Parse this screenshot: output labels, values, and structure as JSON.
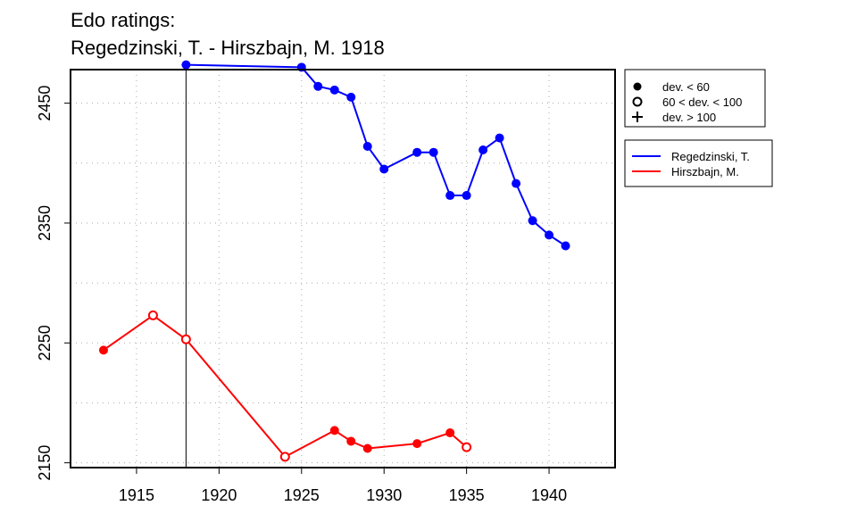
{
  "chart_data": {
    "type": "line",
    "title_line1": "Edo ratings:",
    "title_line2": "Regedzinski, T. - Hirszbajn, M. 1918",
    "xlabel": "",
    "ylabel": "",
    "xlim": [
      1911,
      1944
    ],
    "ylim": [
      2146,
      2478
    ],
    "x_ticks": [
      1915,
      1920,
      1925,
      1930,
      1935,
      1940
    ],
    "y_ticks": [
      2150,
      2250,
      2350,
      2450
    ],
    "x_grid": [
      1915,
      1920,
      1925,
      1930,
      1935,
      1940
    ],
    "y_grid": [
      2150,
      2200,
      2250,
      2300,
      2350,
      2400,
      2450,
      2500
    ],
    "grid": "dotted",
    "marker_year": 1918,
    "marker_legend": [
      {
        "symbol": "filled-circle",
        "label": "dev. < 60"
      },
      {
        "symbol": "open-circle",
        "label": "60 < dev. < 100"
      },
      {
        "symbol": "plus",
        "label": "dev. > 100"
      }
    ],
    "series": [
      {
        "name": "Regedzinski, T.",
        "color": "#0000ff",
        "points": [
          {
            "x": 1918,
            "y": 2482,
            "dev": "low"
          },
          {
            "x": 1925,
            "y": 2480,
            "dev": "low"
          },
          {
            "x": 1926,
            "y": 2464,
            "dev": "low"
          },
          {
            "x": 1927,
            "y": 2461,
            "dev": "low"
          },
          {
            "x": 1928,
            "y": 2455,
            "dev": "low"
          },
          {
            "x": 1929,
            "y": 2414,
            "dev": "low"
          },
          {
            "x": 1930,
            "y": 2395,
            "dev": "low"
          },
          {
            "x": 1932,
            "y": 2409,
            "dev": "low"
          },
          {
            "x": 1933,
            "y": 2409,
            "dev": "low"
          },
          {
            "x": 1934,
            "y": 2373,
            "dev": "low"
          },
          {
            "x": 1935,
            "y": 2373,
            "dev": "low"
          },
          {
            "x": 1936,
            "y": 2411,
            "dev": "low"
          },
          {
            "x": 1937,
            "y": 2421,
            "dev": "low"
          },
          {
            "x": 1938,
            "y": 2383,
            "dev": "low"
          },
          {
            "x": 1939,
            "y": 2352,
            "dev": "low"
          },
          {
            "x": 1940,
            "y": 2340,
            "dev": "low"
          },
          {
            "x": 1941,
            "y": 2331,
            "dev": "low"
          }
        ]
      },
      {
        "name": "Hirszbajn, M.",
        "color": "#ff0000",
        "points": [
          {
            "x": 1913,
            "y": 2244,
            "dev": "low"
          },
          {
            "x": 1916,
            "y": 2273,
            "dev": "mid"
          },
          {
            "x": 1918,
            "y": 2253,
            "dev": "mid"
          },
          {
            "x": 1924,
            "y": 2155,
            "dev": "mid"
          },
          {
            "x": 1927,
            "y": 2177,
            "dev": "low"
          },
          {
            "x": 1928,
            "y": 2168,
            "dev": "low"
          },
          {
            "x": 1929,
            "y": 2162,
            "dev": "low"
          },
          {
            "x": 1932,
            "y": 2166,
            "dev": "low"
          },
          {
            "x": 1934,
            "y": 2175,
            "dev": "low"
          },
          {
            "x": 1935,
            "y": 2163,
            "dev": "mid"
          }
        ]
      }
    ]
  }
}
